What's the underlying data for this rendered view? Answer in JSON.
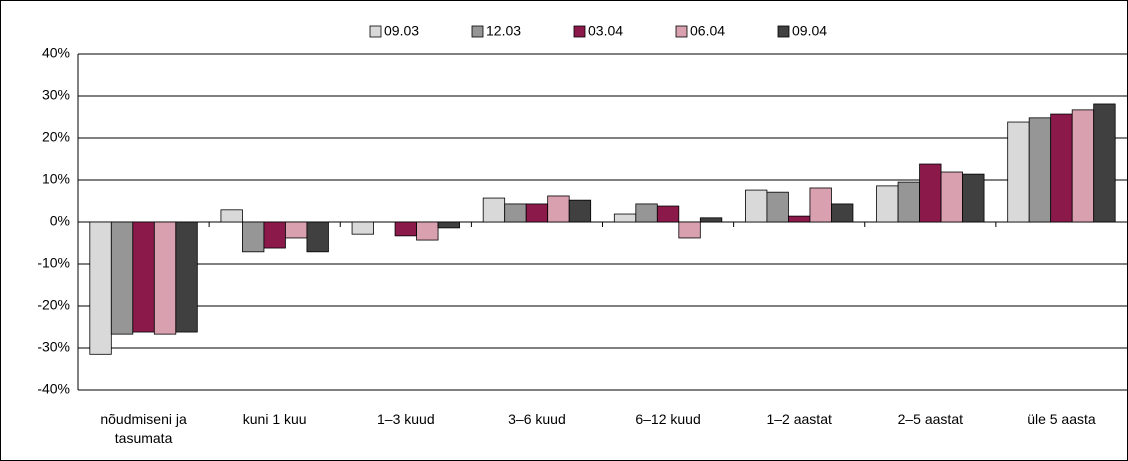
{
  "chart_data": {
    "type": "bar",
    "categories": [
      "nõudmiseni ja tasumata",
      "kuni 1 kuu",
      "1–3 kuud",
      "3–6 kuud",
      "6–12 kuud",
      "1–2 aastat",
      "2–5 aastat",
      "üle 5 aasta"
    ],
    "series": [
      {
        "name": "09.03",
        "color": "#d9d9d9",
        "values": [
          -31.5,
          2.9,
          -2.9,
          5.7,
          1.9,
          7.6,
          8.6,
          23.8
        ]
      },
      {
        "name": "12.03",
        "color": "#969696",
        "values": [
          -26.7,
          -7.1,
          0,
          4.3,
          4.3,
          7.1,
          9.5,
          24.8
        ]
      },
      {
        "name": "03.04",
        "color": "#8b1a4a",
        "values": [
          -26.2,
          -6.2,
          -3.3,
          4.3,
          3.8,
          1.4,
          13.8,
          25.7
        ]
      },
      {
        "name": "06.04",
        "color": "#d9a0b0",
        "values": [
          -26.7,
          -3.8,
          -4.3,
          6.2,
          -3.8,
          8.1,
          11.9,
          26.7
        ]
      },
      {
        "name": "09.04",
        "color": "#404040",
        "values": [
          -26.2,
          -7.1,
          -1.4,
          5.2,
          1.0,
          4.3,
          11.4,
          28.1
        ]
      }
    ],
    "ylim": [
      -40,
      40
    ],
    "yticks": [
      {
        "value": -40,
        "label": "-40%"
      },
      {
        "value": -30,
        "label": "-30%"
      },
      {
        "value": -20,
        "label": "-20%"
      },
      {
        "value": -10,
        "label": "-10%"
      },
      {
        "value": 0,
        "label": "0%"
      },
      {
        "value": 10,
        "label": "10%"
      },
      {
        "value": 20,
        "label": "20%"
      },
      {
        "value": 30,
        "label": "30%"
      },
      {
        "value": 40,
        "label": "40%"
      }
    ],
    "grid": true,
    "legend": "top"
  }
}
